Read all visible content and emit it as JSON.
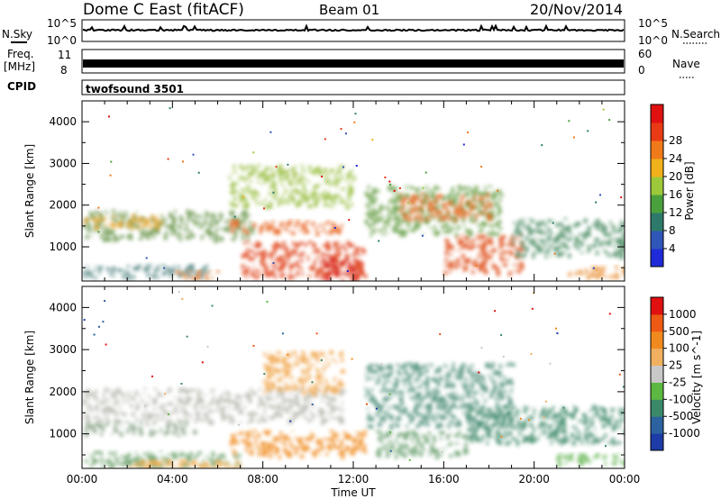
{
  "header": {
    "station": "Dome C East (fitACF)",
    "beam": "Beam 01",
    "date": "20/Nov/2014"
  },
  "sky_panel": {
    "left_label": "N.Sky",
    "left_ticks": [
      "10^5",
      "10^0"
    ],
    "right_ticks": [
      "10^5",
      "10^0"
    ],
    "right_label": "N.Search"
  },
  "freq_panel": {
    "left_label_1": "Freq.",
    "left_label_2": "[MHz]",
    "left_ticks": [
      "11",
      "8"
    ],
    "right_ticks": [
      "60",
      "0"
    ],
    "right_label": "Nave"
  },
  "cpid_panel": {
    "label": "CPID",
    "program": "twofsound 3501"
  },
  "x_axis": {
    "ticks": [
      "00:00",
      "04:00",
      "08:00",
      "12:00",
      "16:00",
      "20:00",
      "00:00"
    ],
    "label": "Time UT"
  },
  "chart_data": [
    {
      "type": "heatmap",
      "panel": "power",
      "ylabel": "Slant Range [km]",
      "yticks": [
        1000,
        2000,
        3000,
        4000
      ],
      "ylim": [
        180,
        4500
      ],
      "xlim_hours": [
        0,
        24
      ],
      "colorbar_label": "Power [dB]",
      "colorbar_ticks": [
        "4",
        "8",
        "12",
        "16",
        "20",
        "24",
        "28"
      ],
      "colorbar_colors": [
        "#1f2bd8",
        "#2f56b8",
        "#2d7a6a",
        "#4aa03c",
        "#9cc83a",
        "#f0b11a",
        "#f07a1a",
        "#e83a14",
        "#e01010"
      ],
      "bands": [
        {
          "t0": 0.0,
          "t1": 7.5,
          "r0": 1200,
          "r1": 1900,
          "color": "#6f9a52"
        },
        {
          "t0": 0.0,
          "t1": 3.5,
          "r0": 1500,
          "r1": 1800,
          "color": "#e8a227"
        },
        {
          "t0": 0.0,
          "t1": 5.5,
          "r0": 300,
          "r1": 600,
          "color": "#5a8a88"
        },
        {
          "t0": 4.0,
          "t1": 6.0,
          "r0": 250,
          "r1": 450,
          "color": "#e0762a"
        },
        {
          "t0": 6.5,
          "t1": 11.5,
          "r0": 1350,
          "r1": 1650,
          "color": "#e8621e"
        },
        {
          "t0": 7.0,
          "t1": 12.5,
          "r0": 300,
          "r1": 1150,
          "color": "#e04018"
        },
        {
          "t0": 10.5,
          "t1": 12.3,
          "r0": 200,
          "r1": 800,
          "color": "#d81e10"
        },
        {
          "t0": 12.5,
          "t1": 18.5,
          "r0": 1300,
          "r1": 2500,
          "color": "#6aa04a"
        },
        {
          "t0": 14.0,
          "t1": 18.0,
          "r0": 1700,
          "r1": 2300,
          "color": "#e8671e"
        },
        {
          "t0": 16.0,
          "t1": 19.5,
          "r0": 400,
          "r1": 1300,
          "color": "#e0501a"
        },
        {
          "t0": 19.0,
          "t1": 24.0,
          "r0": 800,
          "r1": 1700,
          "color": "#4b8c63"
        },
        {
          "t0": 21.5,
          "t1": 24.0,
          "r0": 300,
          "r1": 550,
          "color": "#e8892a"
        },
        {
          "t0": 6.5,
          "t1": 12.0,
          "r0": 2000,
          "r1": 3000,
          "color": "#9cc046"
        }
      ]
    },
    {
      "type": "heatmap",
      "panel": "velocity",
      "ylabel": "Slant Range [km]",
      "yticks": [
        1000,
        2000,
        3000,
        4000
      ],
      "ylim": [
        180,
        4500
      ],
      "xlim_hours": [
        0,
        24
      ],
      "colorbar_label": "Velocity [m s^-1]",
      "colorbar_ticks": [
        "1000",
        "500",
        "100",
        "25",
        "-25",
        "-100",
        "-500",
        "-1000"
      ],
      "colorbar_colors": [
        "#1d3ca8",
        "#2c62a0",
        "#3a8a6a",
        "#5cb840",
        "#c8c8c8",
        "#f0b060",
        "#f08a1e",
        "#ee5a14",
        "#e01010"
      ],
      "bands": [
        {
          "t0": 0.0,
          "t1": 11.5,
          "r0": 1300,
          "r1": 2100,
          "color": "#bcbcb4"
        },
        {
          "t0": 0.0,
          "t1": 5.0,
          "r0": 1000,
          "r1": 1300,
          "color": "#8ea88c"
        },
        {
          "t0": 0.0,
          "t1": 7.0,
          "r0": 250,
          "r1": 600,
          "color": "#6aa06a"
        },
        {
          "t0": 2.0,
          "t1": 7.0,
          "r0": 200,
          "r1": 400,
          "color": "#f0a030"
        },
        {
          "t0": 6.5,
          "t1": 12.5,
          "r0": 500,
          "r1": 1100,
          "color": "#f08a1e"
        },
        {
          "t0": 8.0,
          "t1": 11.5,
          "r0": 2000,
          "r1": 3000,
          "color": "#f0a040"
        },
        {
          "t0": 12.5,
          "t1": 19.0,
          "r0": 1200,
          "r1": 2700,
          "color": "#4f8f7a"
        },
        {
          "t0": 13.0,
          "t1": 17.0,
          "r0": 500,
          "r1": 1100,
          "color": "#6aa070"
        },
        {
          "t0": 17.0,
          "t1": 24.0,
          "r0": 800,
          "r1": 1700,
          "color": "#3f8a6a"
        },
        {
          "t0": 21.0,
          "t1": 24.0,
          "r0": 300,
          "r1": 550,
          "color": "#6ab858"
        }
      ]
    }
  ]
}
